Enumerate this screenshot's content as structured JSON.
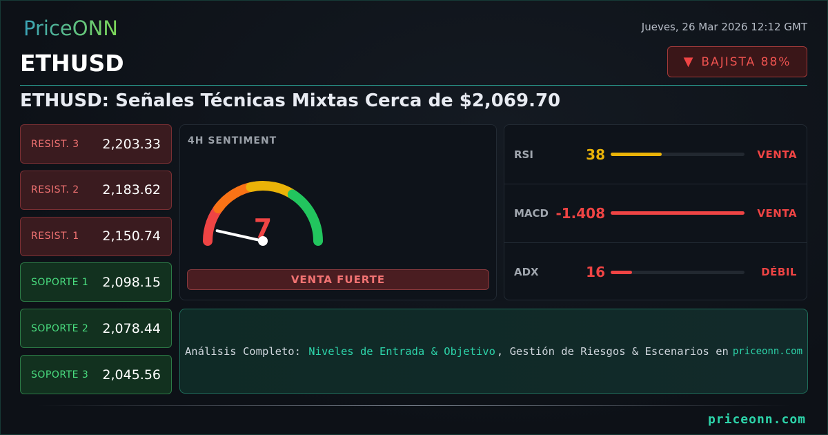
{
  "brand": {
    "logo": "PriceONN",
    "footer": "priceonn.com"
  },
  "header": {
    "symbol": "ETHUSD",
    "date": "Jueves, 26 Mar 2026 12:12 GMT",
    "badge": {
      "icon": "triangle-down-icon",
      "label": "BAJISTA 88%"
    },
    "headline": "ETHUSD: Señales Técnicas Mixtas Cerca de $2,069.70"
  },
  "levels": [
    {
      "name": "RESIST. 3",
      "value": "2,203.33",
      "type": "resistance"
    },
    {
      "name": "RESIST. 2",
      "value": "2,183.62",
      "type": "resistance"
    },
    {
      "name": "RESIST. 1",
      "value": "2,150.74",
      "type": "resistance"
    },
    {
      "name": "SOPORTE 1",
      "value": "2,098.15",
      "type": "support"
    },
    {
      "name": "SOPORTE 2",
      "value": "2,078.44",
      "type": "support"
    },
    {
      "name": "SOPORTE 3",
      "value": "2,045.56",
      "type": "support"
    }
  ],
  "gauge": {
    "title": "4H SENTIMENT",
    "value": "7",
    "value_num": 7,
    "max": 100,
    "label": "VENTA FUERTE"
  },
  "indicators": [
    {
      "name": "RSI",
      "value": "38",
      "fill": 38,
      "signal": "VENTA",
      "color": "#eab308"
    },
    {
      "name": "MACD",
      "value": "-1.408",
      "fill": 100,
      "signal": "VENTA",
      "color": "#ef4444"
    },
    {
      "name": "ADX",
      "value": "16",
      "fill": 16,
      "signal": "DÉBIL",
      "color": "#ef4444"
    }
  ],
  "cta": {
    "prefix": "Análisis Completo:",
    "highlight": "Niveles de Entrada & Objetivo",
    "rest": ", Gestión de Riesgos & Escenarios en",
    "domain": "priceonn.com"
  },
  "colors": {
    "accent": "#2dd4aa",
    "bearish": "#ef4444",
    "bullish": "#4ade80"
  }
}
